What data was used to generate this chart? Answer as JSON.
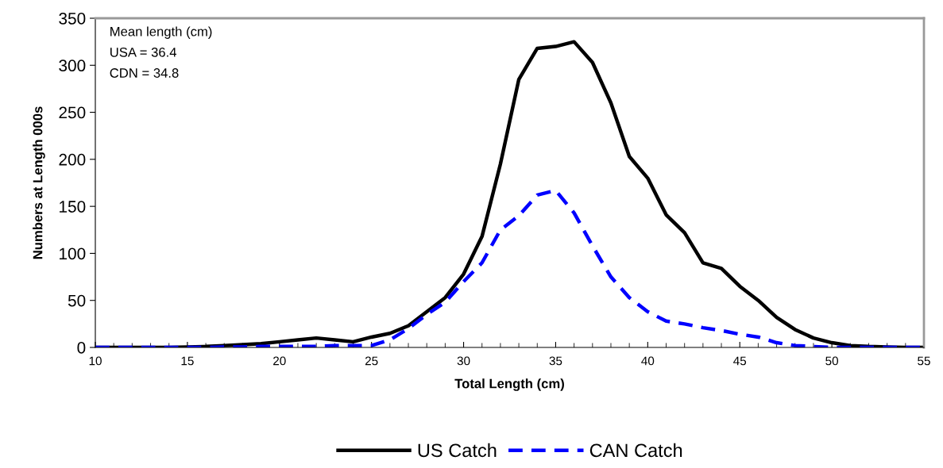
{
  "chart_data": {
    "type": "line",
    "xlabel": "Total Length (cm)",
    "ylabel": "Numbers at Length 000s",
    "annotations": [
      "Mean length (cm)",
      "USA = 36.4",
      "CDN = 34.8"
    ],
    "x": [
      10,
      11,
      12,
      13,
      14,
      15,
      16,
      17,
      18,
      19,
      20,
      21,
      22,
      23,
      24,
      25,
      26,
      27,
      28,
      29,
      30,
      31,
      32,
      33,
      34,
      35,
      36,
      37,
      38,
      39,
      40,
      41,
      42,
      43,
      44,
      45,
      46,
      47,
      48,
      49,
      50,
      51,
      52,
      53,
      54,
      55
    ],
    "series": [
      {
        "name": "US Catch",
        "color": "#000000",
        "line_style": "solid",
        "values": [
          0,
          0,
          0,
          0,
          0,
          0.5,
          1,
          2,
          3,
          4,
          6,
          8,
          10,
          8,
          6,
          11,
          15,
          23,
          38,
          53,
          78,
          118,
          195,
          285,
          318,
          320,
          325,
          303,
          260,
          203,
          180,
          141,
          122,
          90,
          84,
          65,
          50,
          32,
          19,
          10,
          5,
          2,
          1,
          0.5,
          0,
          0
        ]
      },
      {
        "name": "CAN Catch",
        "color": "#0000ff",
        "line_style": "dashed",
        "values": [
          0,
          0,
          0,
          0,
          0,
          0,
          0,
          0.5,
          0.5,
          1,
          1,
          1,
          1,
          2,
          2,
          2,
          8,
          20,
          35,
          48,
          70,
          90,
          125,
          140,
          162,
          167,
          143,
          108,
          75,
          53,
          38,
          28,
          25,
          21,
          18,
          14,
          11,
          5,
          2,
          1,
          0,
          0,
          0,
          0,
          0,
          0
        ]
      }
    ],
    "xlim": [
      10,
      55
    ],
    "xticks": [
      10,
      15,
      20,
      25,
      30,
      35,
      40,
      45,
      50,
      55
    ],
    "ylim": [
      0,
      350
    ],
    "yticks": [
      0,
      50,
      100,
      150,
      200,
      250,
      300,
      350
    ],
    "grid": false,
    "legend": "bottom",
    "marker": "none"
  }
}
